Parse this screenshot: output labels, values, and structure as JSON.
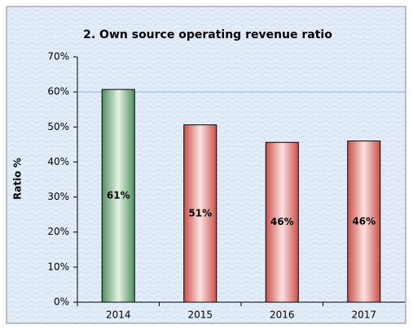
{
  "chart_data": {
    "type": "bar",
    "title": "2. Own source operating revenue ratio",
    "y_label": "Ratio %",
    "categories": [
      "2014",
      "2015",
      "2016",
      "2017"
    ],
    "values": [
      60.7,
      50.6,
      45.6,
      46.0
    ],
    "value_labels": [
      "61%",
      "51%",
      "46%",
      "46%"
    ],
    "colors": [
      "#7fb98a",
      "#e98a86",
      "#e98a86",
      "#e98a86"
    ],
    "ylim": [
      0,
      70
    ],
    "yticks": [
      {
        "value": 0,
        "label": "0%"
      },
      {
        "value": 10,
        "label": "10%"
      },
      {
        "value": 20,
        "label": "20%"
      },
      {
        "value": 30,
        "label": "30%"
      },
      {
        "value": 40,
        "label": "40%"
      },
      {
        "value": 50,
        "label": "50%"
      },
      {
        "value": 60,
        "label": "60%"
      },
      {
        "value": 70,
        "label": "70%"
      }
    ],
    "reference_line": {
      "value": 60,
      "color": "#8fb4e0"
    },
    "grid": false
  }
}
